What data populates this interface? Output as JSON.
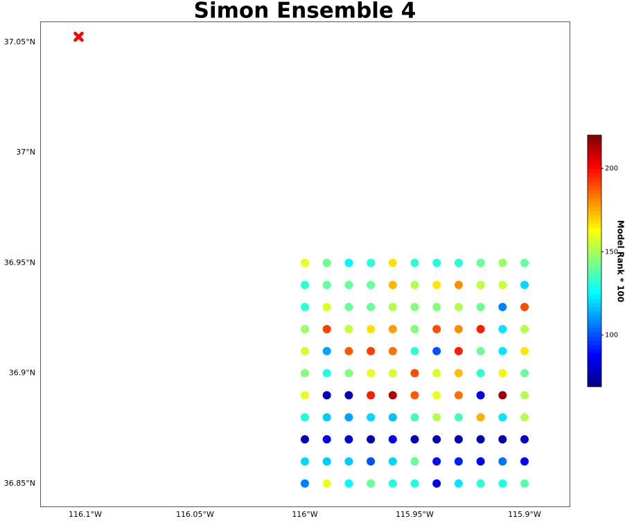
{
  "chart_data": {
    "type": "scatter",
    "title": "Simon Ensemble 4",
    "x": [
      -116,
      -115.99,
      -115.98,
      -115.97,
      -115.96,
      -115.95,
      -115.94,
      -115.93,
      -115.92,
      -115.91,
      -115.9,
      -116,
      -115.99,
      -115.98,
      -115.97,
      -115.96,
      -115.95,
      -115.94,
      -115.93,
      -115.92,
      -115.91,
      -115.9,
      -116,
      -115.99,
      -115.98,
      -115.97,
      -115.96,
      -115.95,
      -115.94,
      -115.93,
      -115.92,
      -115.91,
      -115.9,
      -116,
      -115.99,
      -115.98,
      -115.97,
      -115.96,
      -115.95,
      -115.94,
      -115.93,
      -115.92,
      -115.91,
      -115.9,
      -116,
      -115.99,
      -115.98,
      -115.97,
      -115.96,
      -115.95,
      -115.94,
      -115.93,
      -115.92,
      -115.91,
      -115.9,
      -116,
      -115.99,
      -115.98,
      -115.97,
      -115.96,
      -115.95,
      -115.94,
      -115.93,
      -115.92,
      -115.91,
      -115.9,
      -116,
      -115.99,
      -115.98,
      -115.97,
      -115.96,
      -115.95,
      -115.94,
      -115.93,
      -115.92,
      -115.91,
      -115.9,
      -116,
      -115.99,
      -115.98,
      -115.97,
      -115.96,
      -115.95,
      -115.94,
      -115.93,
      -115.92,
      -115.91,
      -115.9,
      -116,
      -115.99,
      -115.98,
      -115.97,
      -115.96,
      -115.95,
      -115.94,
      -115.93,
      -115.92,
      -115.91,
      -115.9,
      -116,
      -115.99,
      -115.98,
      -115.97,
      -115.96,
      -115.95,
      -115.94,
      -115.93,
      -115.92,
      -115.91,
      -115.9,
      -116,
      -115.99,
      -115.98,
      -115.97,
      -115.96,
      -115.95,
      -115.94,
      -115.93,
      -115.92,
      -115.91,
      -115.9
    ],
    "y": [
      36.95,
      36.95,
      36.95,
      36.95,
      36.95,
      36.95,
      36.95,
      36.95,
      36.95,
      36.95,
      36.95,
      36.94,
      36.94,
      36.94,
      36.94,
      36.94,
      36.94,
      36.94,
      36.94,
      36.94,
      36.94,
      36.94,
      36.93,
      36.93,
      36.93,
      36.93,
      36.93,
      36.93,
      36.93,
      36.93,
      36.93,
      36.93,
      36.93,
      36.92,
      36.92,
      36.92,
      36.92,
      36.92,
      36.92,
      36.92,
      36.92,
      36.92,
      36.92,
      36.92,
      36.91,
      36.91,
      36.91,
      36.91,
      36.91,
      36.91,
      36.91,
      36.91,
      36.91,
      36.91,
      36.91,
      36.9,
      36.9,
      36.9,
      36.9,
      36.9,
      36.9,
      36.9,
      36.9,
      36.9,
      36.9,
      36.9,
      36.89,
      36.89,
      36.89,
      36.89,
      36.89,
      36.89,
      36.89,
      36.89,
      36.89,
      36.89,
      36.89,
      36.88,
      36.88,
      36.88,
      36.88,
      36.88,
      36.88,
      36.88,
      36.88,
      36.88,
      36.88,
      36.88,
      36.87,
      36.87,
      36.87,
      36.87,
      36.87,
      36.87,
      36.87,
      36.87,
      36.87,
      36.87,
      36.87,
      36.86,
      36.86,
      36.86,
      36.86,
      36.86,
      36.86,
      36.86,
      36.86,
      36.86,
      36.86,
      36.86,
      36.85,
      36.85,
      36.85,
      36.85,
      36.85,
      36.85,
      36.85,
      36.85,
      36.85,
      36.85,
      36.85
    ],
    "values": [
      160,
      141,
      125,
      132,
      168,
      132,
      130,
      132,
      141,
      148,
      141,
      132,
      141,
      141,
      141,
      174,
      152,
      167,
      180,
      154,
      155,
      120,
      132,
      158,
      141,
      141,
      152,
      145,
      145,
      152,
      141,
      107,
      190,
      148,
      192,
      155,
      168,
      178,
      145,
      190,
      180,
      197,
      122,
      152,
      158,
      112,
      188,
      192,
      184,
      132,
      100,
      197,
      141,
      122,
      167,
      145,
      130,
      145,
      160,
      158,
      190,
      158,
      173,
      132,
      165,
      141,
      160,
      77,
      77,
      197,
      212,
      188,
      160,
      184,
      84,
      216,
      152,
      130,
      118,
      112,
      120,
      116,
      135,
      152,
      135,
      175,
      122,
      152,
      77,
      84,
      82,
      77,
      86,
      77,
      76,
      77,
      77,
      76,
      80,
      120,
      118,
      118,
      100,
      120,
      141,
      90,
      92,
      88,
      105,
      88,
      107,
      160,
      125,
      141,
      130,
      130,
      86,
      122,
      132,
      130,
      138
    ],
    "colormap": "jet",
    "clim": [
      69,
      220
    ],
    "colorbar_label": "Model Rank * 100",
    "colorbar_ticks": [
      100,
      150,
      200
    ],
    "marker": {
      "x": -116.103,
      "y": 37.0525,
      "color": "#ff0000"
    },
    "xlim": [
      -116.1205,
      -115.8795
    ],
    "ylim": [
      36.8396,
      37.0594
    ],
    "xticks": [
      {
        "value": -116.1,
        "label": "116.1°W"
      },
      {
        "value": -116.05,
        "label": "116.05°W"
      },
      {
        "value": -116,
        "label": "116°W"
      },
      {
        "value": -115.95,
        "label": "115.95°W"
      },
      {
        "value": -115.9,
        "label": "115.9°W"
      }
    ],
    "yticks": [
      {
        "value": 36.85,
        "label": "36.85°N"
      },
      {
        "value": 36.9,
        "label": "36.9°N"
      },
      {
        "value": 36.95,
        "label": "36.95°N"
      },
      {
        "value": 37,
        "label": "37°N"
      },
      {
        "value": 37.05,
        "label": "37.05°N"
      }
    ]
  }
}
